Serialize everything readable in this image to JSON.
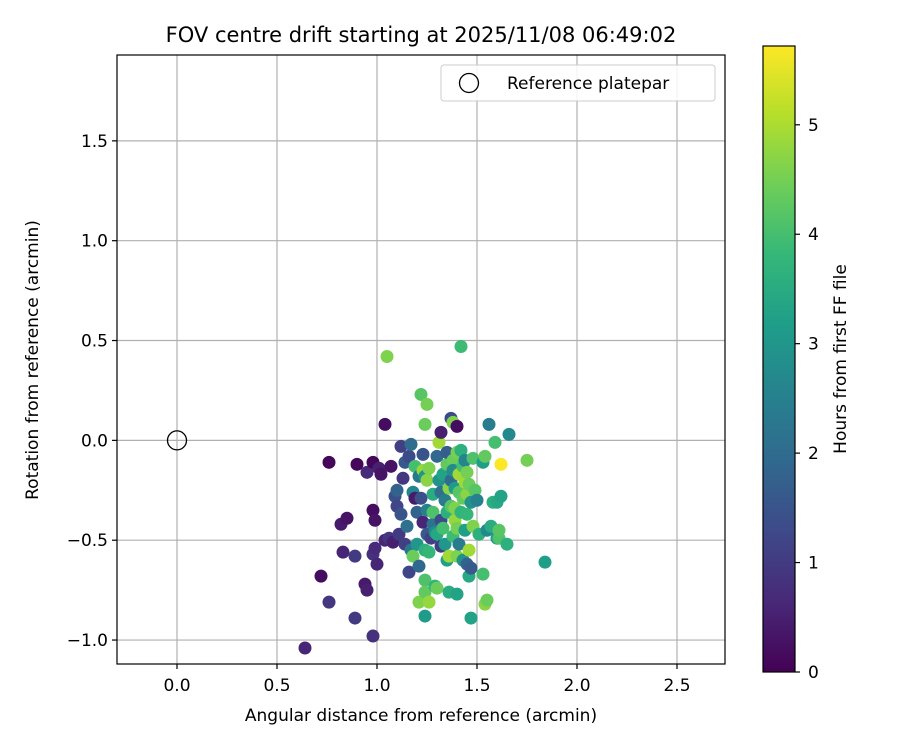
{
  "chart_data": {
    "type": "scatter",
    "title": "FOV centre drift starting at 2025/11/08 06:49:02",
    "xlabel": "Angular distance from reference (arcmin)",
    "ylabel": "Rotation from reference (arcmin)",
    "xlim": [
      -0.3,
      2.74
    ],
    "ylim": [
      -1.12,
      1.93
    ],
    "xticks": [
      0.0,
      0.5,
      1.0,
      1.5,
      2.0,
      2.5
    ],
    "xtick_labels": [
      "0.0",
      "0.5",
      "1.0",
      "1.5",
      "2.0",
      "2.5"
    ],
    "yticks": [
      -1.0,
      -0.5,
      0.0,
      0.5,
      1.0,
      1.5
    ],
    "ytick_labels": [
      "−1.0",
      "−0.5",
      "0.0",
      "0.5",
      "1.0",
      "1.5"
    ],
    "grid": true,
    "colormap": "viridis",
    "colorbar": {
      "label": "Hours from first FF file",
      "range": [
        0,
        5.72
      ],
      "ticks": [
        0,
        1,
        2,
        3,
        4,
        5
      ],
      "tick_labels": [
        "0",
        "1",
        "2",
        "3",
        "4",
        "5"
      ]
    },
    "reference": {
      "name": "Reference platepar",
      "x": 0.0,
      "y": 0.0,
      "marker": "open-circle"
    },
    "legend": {
      "placement": "upper right",
      "entries": [
        "Reference platepar"
      ]
    },
    "series": [
      {
        "values": [
          {
            "x": 0.64,
            "y": -1.04,
            "c": 0.6
          },
          {
            "x": 0.76,
            "y": -0.81,
            "c": 0.9
          },
          {
            "x": 0.72,
            "y": -0.68,
            "c": 0.2
          },
          {
            "x": 0.76,
            "y": -0.11,
            "c": 0.1
          },
          {
            "x": 0.82,
            "y": -0.42,
            "c": 0.4
          },
          {
            "x": 0.83,
            "y": -0.56,
            "c": 0.6
          },
          {
            "x": 0.85,
            "y": -0.39,
            "c": 0.3
          },
          {
            "x": 0.89,
            "y": -0.58,
            "c": 1.0
          },
          {
            "x": 0.89,
            "y": -0.89,
            "c": 1.0
          },
          {
            "x": 0.9,
            "y": -0.12,
            "c": 0.1
          },
          {
            "x": 0.94,
            "y": -0.72,
            "c": 0.4
          },
          {
            "x": 0.95,
            "y": -0.75,
            "c": 0.5
          },
          {
            "x": 0.95,
            "y": -0.16,
            "c": 0.7
          },
          {
            "x": 0.98,
            "y": -0.98,
            "c": 0.8
          },
          {
            "x": 0.98,
            "y": -0.11,
            "c": 0.1
          },
          {
            "x": 0.98,
            "y": -0.35,
            "c": 0.2
          },
          {
            "x": 0.99,
            "y": -0.4,
            "c": 0.3
          },
          {
            "x": 0.98,
            "y": -0.57,
            "c": 0.8
          },
          {
            "x": 0.99,
            "y": -0.54,
            "c": 0.7
          },
          {
            "x": 1.0,
            "y": -0.62,
            "c": 0.6
          },
          {
            "x": 1.01,
            "y": -0.14,
            "c": 0.5
          },
          {
            "x": 1.02,
            "y": -0.17,
            "c": 0.3
          },
          {
            "x": 1.04,
            "y": 0.08,
            "c": 0.2
          },
          {
            "x": 1.05,
            "y": 0.42,
            "c": 4.6
          },
          {
            "x": 1.04,
            "y": -0.5,
            "c": 0.6
          },
          {
            "x": 1.06,
            "y": -0.49,
            "c": 0.9
          },
          {
            "x": 1.07,
            "y": -0.13,
            "c": 0.3
          },
          {
            "x": 1.08,
            "y": -0.51,
            "c": 0.5
          },
          {
            "x": 1.09,
            "y": -0.28,
            "c": 1.4
          },
          {
            "x": 1.1,
            "y": -0.25,
            "c": 1.8
          },
          {
            "x": 1.1,
            "y": -0.33,
            "c": 1.2
          },
          {
            "x": 1.11,
            "y": -0.47,
            "c": 1.0
          },
          {
            "x": 1.12,
            "y": -0.03,
            "c": 1.1
          },
          {
            "x": 1.12,
            "y": -0.37,
            "c": 1.5
          },
          {
            "x": 1.13,
            "y": -0.19,
            "c": 0.9
          },
          {
            "x": 1.14,
            "y": -0.11,
            "c": 1.6
          },
          {
            "x": 1.14,
            "y": -0.52,
            "c": 1.1
          },
          {
            "x": 1.15,
            "y": -0.43,
            "c": 2.1
          },
          {
            "x": 1.16,
            "y": -0.66,
            "c": 1.2
          },
          {
            "x": 1.16,
            "y": -0.08,
            "c": 1.3
          },
          {
            "x": 1.17,
            "y": -0.02,
            "c": 2.0
          },
          {
            "x": 1.17,
            "y": -0.55,
            "c": 2.3
          },
          {
            "x": 1.18,
            "y": -0.58,
            "c": 4.4
          },
          {
            "x": 1.18,
            "y": -0.26,
            "c": 2.6
          },
          {
            "x": 1.19,
            "y": -0.13,
            "c": 4.0
          },
          {
            "x": 1.19,
            "y": -0.29,
            "c": 0.4
          },
          {
            "x": 1.2,
            "y": -0.36,
            "c": 1.8
          },
          {
            "x": 1.2,
            "y": -0.52,
            "c": 3.0
          },
          {
            "x": 1.21,
            "y": -0.81,
            "c": 4.6
          },
          {
            "x": 1.21,
            "y": -0.63,
            "c": 1.9
          },
          {
            "x": 1.21,
            "y": -0.18,
            "c": 2.3
          },
          {
            "x": 1.22,
            "y": -0.29,
            "c": 1.4
          },
          {
            "x": 1.22,
            "y": 0.23,
            "c": 4.2
          },
          {
            "x": 1.23,
            "y": -0.07,
            "c": 1.5
          },
          {
            "x": 1.23,
            "y": -0.41,
            "c": 0.6
          },
          {
            "x": 1.23,
            "y": -0.15,
            "c": 4.8
          },
          {
            "x": 1.24,
            "y": -0.55,
            "c": 3.6
          },
          {
            "x": 1.24,
            "y": -0.18,
            "c": 3.0
          },
          {
            "x": 1.24,
            "y": -0.7,
            "c": 4.1
          },
          {
            "x": 1.24,
            "y": -0.76,
            "c": 4.3
          },
          {
            "x": 1.24,
            "y": 0.08,
            "c": 4.4
          },
          {
            "x": 1.24,
            "y": -0.88,
            "c": 3.1
          },
          {
            "x": 1.25,
            "y": -0.47,
            "c": 1.6
          },
          {
            "x": 1.25,
            "y": -0.35,
            "c": 2.5
          },
          {
            "x": 1.25,
            "y": -0.2,
            "c": 4.7
          },
          {
            "x": 1.25,
            "y": 0.18,
            "c": 4.5
          },
          {
            "x": 1.26,
            "y": -0.14,
            "c": 4.6
          },
          {
            "x": 1.26,
            "y": -0.81,
            "c": 4.8
          },
          {
            "x": 1.26,
            "y": -0.56,
            "c": 3.8
          },
          {
            "x": 1.27,
            "y": -0.49,
            "c": 1.1
          },
          {
            "x": 1.28,
            "y": -0.42,
            "c": 2.2
          },
          {
            "x": 1.28,
            "y": -0.27,
            "c": 3.5
          },
          {
            "x": 1.28,
            "y": -0.36,
            "c": 4.1
          },
          {
            "x": 1.29,
            "y": -0.46,
            "c": 2.7
          },
          {
            "x": 1.29,
            "y": -0.73,
            "c": 3.7
          },
          {
            "x": 1.3,
            "y": -0.74,
            "c": 4.4
          },
          {
            "x": 1.3,
            "y": -0.08,
            "c": 1.9
          },
          {
            "x": 1.3,
            "y": -0.47,
            "c": 3.4
          },
          {
            "x": 1.31,
            "y": -0.01,
            "c": 4.9
          },
          {
            "x": 1.31,
            "y": -0.2,
            "c": 2.9
          },
          {
            "x": 1.32,
            "y": -0.53,
            "c": 1.0
          },
          {
            "x": 1.32,
            "y": -0.4,
            "c": 1.3
          },
          {
            "x": 1.32,
            "y": -0.26,
            "c": 2.1
          },
          {
            "x": 1.32,
            "y": 0.04,
            "c": 0.5
          },
          {
            "x": 1.33,
            "y": -0.17,
            "c": 3.3
          },
          {
            "x": 1.33,
            "y": -0.44,
            "c": 4.0
          },
          {
            "x": 1.34,
            "y": -0.3,
            "c": 2.4
          },
          {
            "x": 1.34,
            "y": -0.52,
            "c": 3.0
          },
          {
            "x": 1.35,
            "y": -0.12,
            "c": 4.3
          },
          {
            "x": 1.35,
            "y": -0.36,
            "c": 3.6
          },
          {
            "x": 1.35,
            "y": -0.6,
            "c": 3.2
          },
          {
            "x": 1.35,
            "y": -0.06,
            "c": 1.7
          },
          {
            "x": 1.36,
            "y": -0.76,
            "c": 3.5
          },
          {
            "x": 1.36,
            "y": -0.24,
            "c": 4.7
          },
          {
            "x": 1.36,
            "y": -0.58,
            "c": 4.9
          },
          {
            "x": 1.37,
            "y": -0.33,
            "c": 4.2
          },
          {
            "x": 1.37,
            "y": -0.2,
            "c": 2.0
          },
          {
            "x": 1.37,
            "y": 0.11,
            "c": 1.3
          },
          {
            "x": 1.38,
            "y": -0.48,
            "c": 3.9
          },
          {
            "x": 1.38,
            "y": -0.1,
            "c": 4.4
          },
          {
            "x": 1.38,
            "y": -0.15,
            "c": 2.8
          },
          {
            "x": 1.38,
            "y": 0.09,
            "c": 4.6
          },
          {
            "x": 1.39,
            "y": -0.4,
            "c": 4.8
          },
          {
            "x": 1.39,
            "y": -0.24,
            "c": 3.1
          },
          {
            "x": 1.39,
            "y": -0.34,
            "c": 4.6
          },
          {
            "x": 1.4,
            "y": -0.77,
            "c": 3.3
          },
          {
            "x": 1.4,
            "y": -0.58,
            "c": 4.6
          },
          {
            "x": 1.4,
            "y": -0.06,
            "c": 4.5
          },
          {
            "x": 1.4,
            "y": -0.44,
            "c": 4.5
          },
          {
            "x": 1.4,
            "y": 0.07,
            "c": 0.2
          },
          {
            "x": 1.41,
            "y": -0.17,
            "c": 4.9
          },
          {
            "x": 1.41,
            "y": -0.26,
            "c": 4.2
          },
          {
            "x": 1.41,
            "y": -0.52,
            "c": 2.4
          },
          {
            "x": 1.42,
            "y": 0.47,
            "c": 3.9
          },
          {
            "x": 1.42,
            "y": -0.36,
            "c": 3.7
          },
          {
            "x": 1.42,
            "y": -0.05,
            "c": 3.6
          },
          {
            "x": 1.43,
            "y": -0.29,
            "c": 4.3
          },
          {
            "x": 1.43,
            "y": -0.13,
            "c": 4.0
          },
          {
            "x": 1.43,
            "y": -0.6,
            "c": 2.9
          },
          {
            "x": 1.44,
            "y": -0.21,
            "c": 4.9
          },
          {
            "x": 1.44,
            "y": -0.45,
            "c": 3.2
          },
          {
            "x": 1.44,
            "y": -0.1,
            "c": 2.6
          },
          {
            "x": 1.45,
            "y": -0.27,
            "c": 4.7
          },
          {
            "x": 1.45,
            "y": -0.37,
            "c": 3.8
          },
          {
            "x": 1.45,
            "y": -0.16,
            "c": 4.5
          },
          {
            "x": 1.45,
            "y": -0.62,
            "c": 1.8
          },
          {
            "x": 1.46,
            "y": -0.55,
            "c": 4.9
          },
          {
            "x": 1.46,
            "y": -0.68,
            "c": 3.4
          },
          {
            "x": 1.46,
            "y": -0.22,
            "c": 4.4
          },
          {
            "x": 1.47,
            "y": -0.89,
            "c": 3.3
          },
          {
            "x": 1.47,
            "y": -0.64,
            "c": 1.6
          },
          {
            "x": 1.47,
            "y": -0.31,
            "c": 2.9
          },
          {
            "x": 1.48,
            "y": -0.09,
            "c": 4.1
          },
          {
            "x": 1.48,
            "y": -0.43,
            "c": 4.6
          },
          {
            "x": 1.49,
            "y": -0.25,
            "c": 4.2
          },
          {
            "x": 1.5,
            "y": -0.3,
            "c": 2.5
          },
          {
            "x": 1.51,
            "y": -0.47,
            "c": 3.6
          },
          {
            "x": 1.53,
            "y": -0.11,
            "c": 3.2
          },
          {
            "x": 1.53,
            "y": -0.67,
            "c": 4.0
          },
          {
            "x": 1.54,
            "y": -0.82,
            "c": 4.7
          },
          {
            "x": 1.54,
            "y": -0.08,
            "c": 4.3
          },
          {
            "x": 1.55,
            "y": -0.8,
            "c": 4.4
          },
          {
            "x": 1.55,
            "y": -0.45,
            "c": 2.7
          },
          {
            "x": 1.56,
            "y": 0.08,
            "c": 2.4
          },
          {
            "x": 1.57,
            "y": -0.43,
            "c": 3.5
          },
          {
            "x": 1.58,
            "y": -0.31,
            "c": 3.6
          },
          {
            "x": 1.59,
            "y": -0.01,
            "c": 4.0
          },
          {
            "x": 1.6,
            "y": -0.31,
            "c": 3.4
          },
          {
            "x": 1.6,
            "y": -0.49,
            "c": 3.1
          },
          {
            "x": 1.61,
            "y": -0.49,
            "c": 4.1
          },
          {
            "x": 1.61,
            "y": -0.45,
            "c": 4.2
          },
          {
            "x": 1.62,
            "y": -0.12,
            "c": 5.7
          },
          {
            "x": 1.62,
            "y": -0.28,
            "c": 3.3
          },
          {
            "x": 1.65,
            "y": -0.52,
            "c": 3.6
          },
          {
            "x": 1.66,
            "y": 0.03,
            "c": 2.7
          },
          {
            "x": 1.75,
            "y": -0.1,
            "c": 4.5
          },
          {
            "x": 1.84,
            "y": -0.61,
            "c": 3.2
          }
        ]
      }
    ]
  }
}
